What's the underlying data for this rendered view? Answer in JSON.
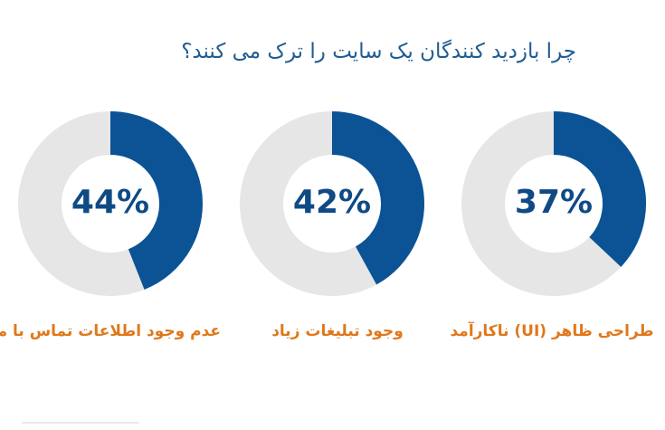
{
  "title": "چرا بازدید کنندگان یک سایت را ترک می کنند؟",
  "colors": {
    "filled": "#0b5394",
    "track": "#e6e6e6",
    "percent": "#0f4a85",
    "label": "#e0781b",
    "title": "#1f5c93"
  },
  "chart_data": [
    {
      "type": "pie",
      "variant": "donut",
      "value": 44,
      "max": 100,
      "value_label": "44%",
      "category": "عدم وجود اطلاعات تماس با ما"
    },
    {
      "type": "pie",
      "variant": "donut",
      "value": 42,
      "max": 100,
      "value_label": "42%",
      "category": "وجود تبلیغات زیاد"
    },
    {
      "type": "pie",
      "variant": "donut",
      "value": 37,
      "max": 100,
      "value_label": "37%",
      "category": "طراحی ظاهر (UI) ناکارآمد"
    }
  ]
}
